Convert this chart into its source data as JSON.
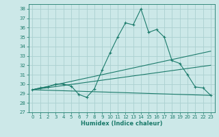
{
  "xlabel": "Humidex (Indice chaleur)",
  "ylabel": "",
  "background_color": "#cce8e8",
  "grid_color": "#aad0d0",
  "line_color": "#1a7a6a",
  "xlim": [
    -0.5,
    23.5
  ],
  "ylim": [
    27,
    38.5
  ],
  "yticks": [
    27,
    28,
    29,
    30,
    31,
    32,
    33,
    34,
    35,
    36,
    37,
    38
  ],
  "xticks": [
    0,
    1,
    2,
    3,
    4,
    5,
    6,
    7,
    8,
    9,
    10,
    11,
    12,
    13,
    14,
    15,
    16,
    17,
    18,
    19,
    20,
    21,
    22,
    23
  ],
  "lines": [
    {
      "x": [
        0,
        1,
        2,
        3,
        4,
        5,
        6,
        7,
        8,
        9,
        10,
        11,
        12,
        13,
        14,
        15,
        16,
        17,
        18,
        19,
        20,
        21,
        22,
        23
      ],
      "y": [
        29.4,
        29.6,
        29.7,
        30.0,
        30.0,
        29.8,
        28.9,
        28.6,
        29.5,
        31.5,
        33.3,
        35.0,
        36.5,
        36.3,
        38.0,
        35.5,
        35.8,
        35.0,
        32.5,
        32.2,
        31.0,
        29.7,
        29.6,
        28.8
      ],
      "has_markers": true
    },
    {
      "x": [
        0,
        23
      ],
      "y": [
        29.4,
        33.5
      ],
      "has_markers": false
    },
    {
      "x": [
        0,
        23
      ],
      "y": [
        29.4,
        32.0
      ],
      "has_markers": false
    },
    {
      "x": [
        0,
        23
      ],
      "y": [
        29.4,
        28.8
      ],
      "has_markers": false
    }
  ]
}
